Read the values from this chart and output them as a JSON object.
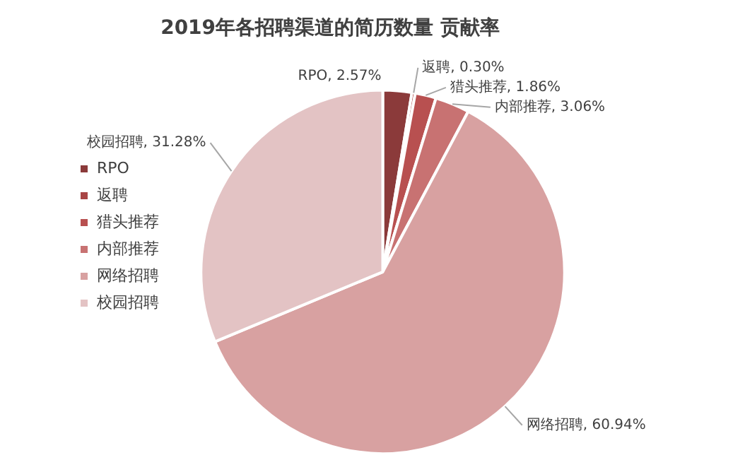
{
  "chart_data": {
    "type": "pie",
    "title": "2019年各招聘渠道的简历数量 贡献率",
    "categories": [
      "RPO",
      "返聘",
      "猎头推荐",
      "内部推荐",
      "网络招聘",
      "校园招聘"
    ],
    "values": [
      2.57,
      0.3,
      1.86,
      3.06,
      60.94,
      31.28
    ],
    "value_labels": [
      "RPO, 2.57%",
      "返聘, 0.30%",
      "猎头推荐, 1.86%",
      "内部推荐, 3.06%",
      "网络招聘, 60.94%",
      "校园招聘, 31.28%"
    ],
    "colors": [
      "#8b3a3a",
      "#a84545",
      "#b85050",
      "#c87272",
      "#d8a1a1",
      "#e3c3c4"
    ],
    "legend": "left"
  }
}
